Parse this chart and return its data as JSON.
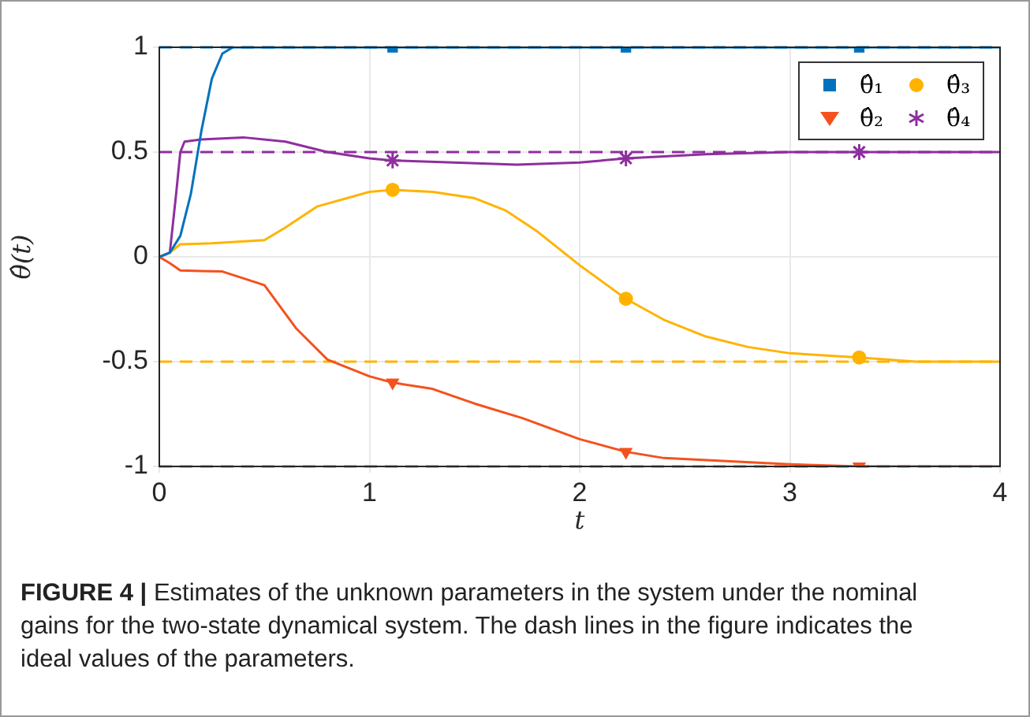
{
  "chart_data": {
    "type": "line",
    "xlabel": "t",
    "ylabel": "θ̂(t)",
    "xlim": [
      0,
      4
    ],
    "xticks": [
      0,
      1,
      2,
      3,
      4
    ],
    "ylim": [
      -1,
      1
    ],
    "yticks": [
      -1,
      -0.5,
      0,
      0.5,
      1
    ],
    "grid": true,
    "legend": "top right",
    "ref_lines": [
      {
        "axis": "y",
        "value": 1,
        "color": "#0072bd",
        "line_style": "dashed"
      },
      {
        "axis": "y",
        "value": -1,
        "color": "#f4511e",
        "line_style": "dashed"
      },
      {
        "axis": "y",
        "value": -0.5,
        "color": "#ffb300",
        "line_style": "dashed"
      },
      {
        "axis": "y",
        "value": 0.5,
        "color": "#8e2f9e",
        "line_style": "dashed"
      }
    ],
    "series": [
      {
        "color": "#0072bd",
        "marker": "none",
        "x": [
          0,
          0.05,
          0.1,
          0.15,
          0.2,
          0.25,
          0.3,
          0.35,
          4
        ],
        "values": [
          0,
          0.02,
          0.1,
          0.3,
          0.6,
          0.85,
          0.97,
          1,
          1
        ]
      },
      {
        "color": "#f4511e",
        "marker": "none",
        "x": [
          0,
          0.05,
          0.1,
          0.3,
          0.5,
          0.65,
          0.8,
          1.0,
          1.11,
          1.3,
          1.5,
          1.73,
          2.0,
          2.22,
          2.4,
          3.0,
          3.33,
          4
        ],
        "values": [
          0,
          -0.03,
          -0.065,
          -0.07,
          -0.135,
          -0.34,
          -0.49,
          -0.57,
          -0.6,
          -0.63,
          -0.7,
          -0.77,
          -0.87,
          -0.93,
          -0.96,
          -0.99,
          -1,
          -1
        ]
      },
      {
        "color": "#ffb300",
        "marker": "none",
        "x": [
          0,
          0.05,
          0.1,
          0.25,
          0.5,
          0.6,
          0.75,
          1.0,
          1.11,
          1.3,
          1.5,
          1.65,
          1.8,
          2.0,
          2.22,
          2.4,
          2.6,
          2.8,
          3.0,
          3.33,
          3.6,
          4
        ],
        "values": [
          0,
          0.02,
          0.06,
          0.065,
          0.08,
          0.14,
          0.24,
          0.31,
          0.32,
          0.31,
          0.28,
          0.22,
          0.12,
          -0.04,
          -0.2,
          -0.3,
          -0.38,
          -0.43,
          -0.46,
          -0.48,
          -0.5,
          -0.5
        ]
      },
      {
        "color": "#8e2f9e",
        "marker": "none",
        "x": [
          0,
          0.05,
          0.08,
          0.1,
          0.12,
          0.2,
          0.4,
          0.6,
          0.8,
          1.0,
          1.11,
          1.4,
          1.7,
          2.0,
          2.22,
          2.6,
          3.0,
          4
        ],
        "values": [
          0,
          0.02,
          0.3,
          0.5,
          0.55,
          0.56,
          0.57,
          0.55,
          0.5,
          0.47,
          0.46,
          0.45,
          0.44,
          0.45,
          0.47,
          0.49,
          0.5,
          0.5
        ]
      },
      {
        "type": "scatter",
        "name": "θ̂₁",
        "color": "#0072bd",
        "marker": "square",
        "x": [
          1.11,
          2.22,
          3.33
        ],
        "values": [
          1,
          1,
          1
        ]
      },
      {
        "type": "scatter",
        "name": "θ̂₂",
        "color": "#f4511e",
        "marker": "triangle",
        "x": [
          1.11,
          2.22,
          3.33
        ],
        "values": [
          -0.6,
          -0.93,
          -1
        ]
      },
      {
        "type": "scatter",
        "name": "θ̂₃",
        "color": "#ffb300",
        "marker": "circle",
        "x": [
          1.11,
          2.22,
          3.33
        ],
        "values": [
          0.32,
          -0.2,
          -0.48
        ]
      },
      {
        "type": "scatter",
        "name": "θ̂₄",
        "color": "#8e2f9e",
        "marker": "cross",
        "x": [
          1.11,
          2.22,
          3.33
        ],
        "values": [
          0.46,
          0.47,
          0.5
        ]
      }
    ],
    "annotations": [
      "FIGURE 4 |",
      "Estimates of the unknown parameters in the system under the nominal gains for the two-state dynamical system. The dash lines in the figure indicates the ideal values of the parameters."
    ]
  }
}
